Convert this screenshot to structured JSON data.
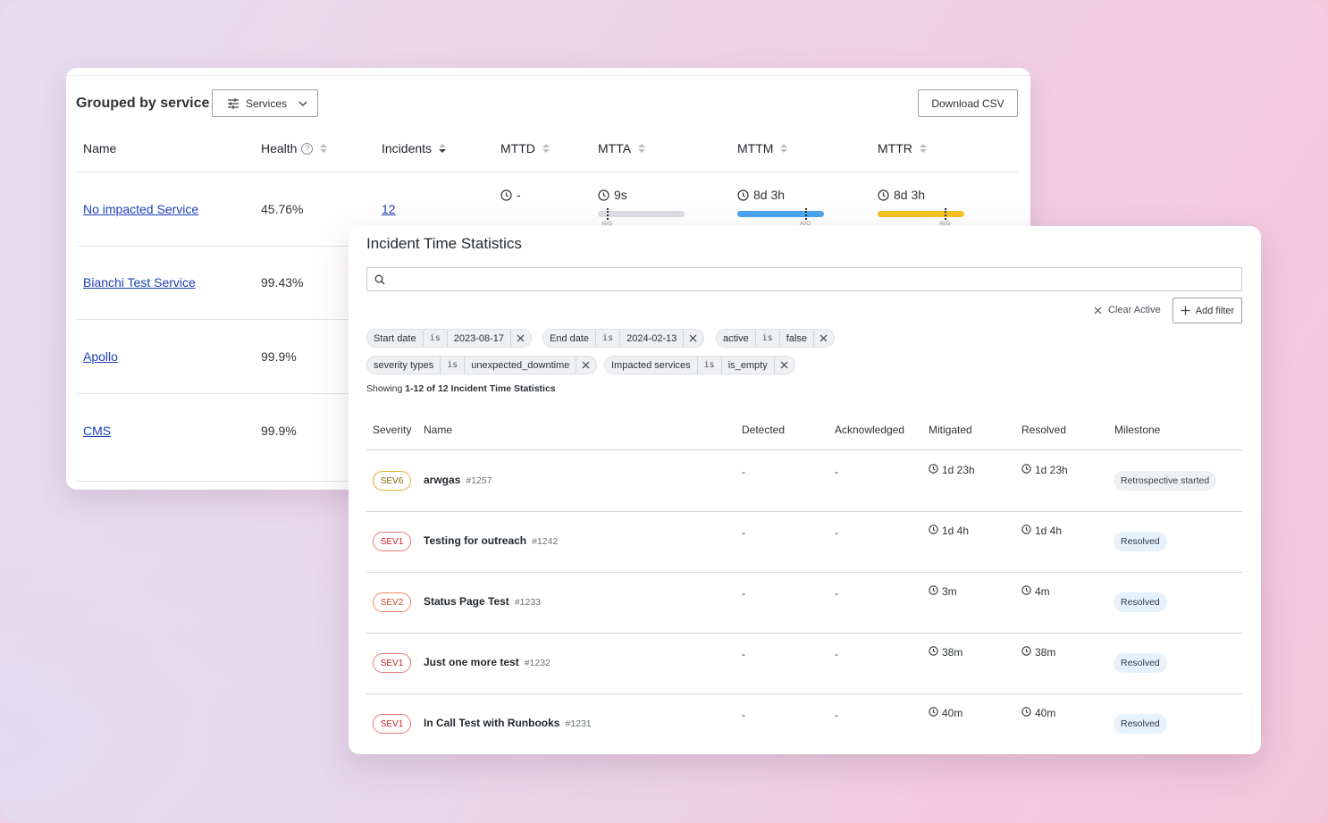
{
  "grouped": {
    "title": "Grouped by service",
    "services_button": "Services",
    "download_button": "Download CSV",
    "columns": [
      "Name",
      "Health",
      "Incidents",
      "MTTD",
      "MTTA",
      "MTTM",
      "MTTR"
    ],
    "help_glyph": "?",
    "rows": [
      {
        "name": "No impacted Service",
        "health": "45.76%",
        "incidents": "12"
      },
      {
        "name": "Bianchi Test Service",
        "health": "99.43%"
      },
      {
        "name": "Apollo",
        "health": "99.9%"
      },
      {
        "name": "CMS",
        "health": "99.9%"
      }
    ],
    "metrics": {
      "mttd": "-",
      "mtta": "9s",
      "mttm": "8d 3h",
      "mttr": "8d 3h"
    },
    "avg_label": "AVG",
    "bar_colors": {
      "mtta": "#dcdde3",
      "mttm": "#4aa4ef",
      "mttr": "#f6c220"
    }
  },
  "stats": {
    "title": "Incident Time Statistics",
    "search_placeholder": "",
    "clear_active": "Clear Active",
    "add_filter": "Add filter",
    "filters": [
      {
        "field": "Start date",
        "op": "is",
        "value": "2023-08-17"
      },
      {
        "field": "End date",
        "op": "is",
        "value": "2024-02-13"
      },
      {
        "field": "active",
        "op": "is",
        "value": "false"
      },
      {
        "field": "severity types",
        "op": "is",
        "value": "unexpected_downtime"
      },
      {
        "field": "Impacted services",
        "op": "is",
        "value": "is_empty"
      }
    ],
    "showing_prefix": "Showing",
    "showing_range": "1-12 of 12 Incident Time Statistics",
    "columns": [
      "Severity",
      "Name",
      "Detected",
      "Acknowledged",
      "Mitigated",
      "Resolved",
      "Milestone"
    ],
    "rows": [
      {
        "sev": "SEV6",
        "name": "arwgas",
        "num": "#1257",
        "detected": "-",
        "ack": "-",
        "mitigated": "1d 23h",
        "resolved": "1d 23h",
        "milestone": "Retrospective started"
      },
      {
        "sev": "SEV1",
        "name": "Testing for outreach",
        "num": "#1242",
        "detected": "-",
        "ack": "-",
        "mitigated": "1d 4h",
        "resolved": "1d 4h",
        "milestone": "Resolved"
      },
      {
        "sev": "SEV2",
        "name": "Status Page Test",
        "num": "#1233",
        "detected": "-",
        "ack": "-",
        "mitigated": "3m",
        "resolved": "4m",
        "milestone": "Resolved"
      },
      {
        "sev": "SEV1",
        "name": "Just one more test",
        "num": "#1232",
        "detected": "-",
        "ack": "-",
        "mitigated": "38m",
        "resolved": "38m",
        "milestone": "Resolved"
      },
      {
        "sev": "SEV1",
        "name": "In Call Test with Runbooks",
        "num": "#1231",
        "detected": "-",
        "ack": "-",
        "mitigated": "40m",
        "resolved": "40m",
        "milestone": "Resolved"
      }
    ]
  }
}
